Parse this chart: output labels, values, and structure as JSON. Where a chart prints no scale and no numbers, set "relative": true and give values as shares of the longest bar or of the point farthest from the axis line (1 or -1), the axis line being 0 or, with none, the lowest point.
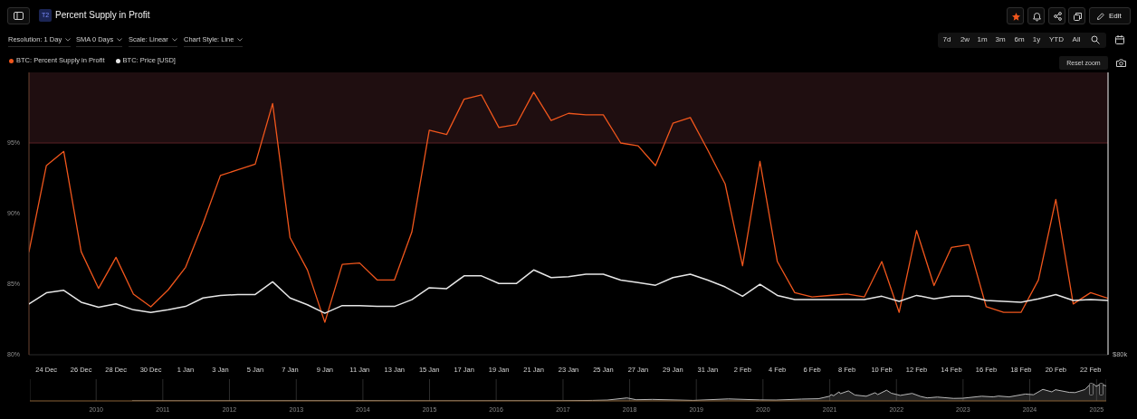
{
  "chart_data": [
    {
      "type": "line",
      "title": "Percent Supply in Profit",
      "annotations": [
        "T2",
        "Resolution: 1 Day",
        "SMA 0 Days",
        "Scale: Linear",
        "Chart Style: Line",
        "Edit",
        "7d",
        "2w",
        "1m",
        "3m",
        "6m",
        "1y",
        "YTD",
        "All",
        "Reset zoom"
      ],
      "x": [
        "2024-12-23",
        "2024-12-24",
        "2024-12-25",
        "2024-12-26",
        "2024-12-27",
        "2024-12-28",
        "2024-12-29",
        "2024-12-30",
        "2024-12-31",
        "2025-01-01",
        "2025-01-02",
        "2025-01-03",
        "2025-01-04",
        "2025-01-05",
        "2025-01-06",
        "2025-01-07",
        "2025-01-08",
        "2025-01-09",
        "2025-01-10",
        "2025-01-11",
        "2025-01-12",
        "2025-01-13",
        "2025-01-14",
        "2025-01-15",
        "2025-01-16",
        "2025-01-17",
        "2025-01-18",
        "2025-01-19",
        "2025-01-20",
        "2025-01-21",
        "2025-01-22",
        "2025-01-23",
        "2025-01-24",
        "2025-01-25",
        "2025-01-26",
        "2025-01-27",
        "2025-01-28",
        "2025-01-29",
        "2025-01-30",
        "2025-01-31",
        "2025-02-01",
        "2025-02-02",
        "2025-02-03",
        "2025-02-04",
        "2025-02-05",
        "2025-02-06",
        "2025-02-07",
        "2025-02-08",
        "2025-02-09",
        "2025-02-10",
        "2025-02-11",
        "2025-02-12",
        "2025-02-13",
        "2025-02-14",
        "2025-02-15",
        "2025-02-16",
        "2025-02-17",
        "2025-02-18",
        "2025-02-19",
        "2025-02-20",
        "2025-02-21",
        "2025-02-22",
        "2025-02-23"
      ],
      "xlim": [
        "2024-12-23",
        "2025-02-23"
      ],
      "xticks": [
        {
          "value": "2024-12-24",
          "label": "24 Dec"
        },
        {
          "value": "2024-12-26",
          "label": "26 Dec"
        },
        {
          "value": "2024-12-28",
          "label": "28 Dec"
        },
        {
          "value": "2024-12-30",
          "label": "30 Dec"
        },
        {
          "value": "2025-01-01",
          "label": "1 Jan"
        },
        {
          "value": "2025-01-03",
          "label": "3 Jan"
        },
        {
          "value": "2025-01-05",
          "label": "5 Jan"
        },
        {
          "value": "2025-01-07",
          "label": "7 Jan"
        },
        {
          "value": "2025-01-09",
          "label": "9 Jan"
        },
        {
          "value": "2025-01-11",
          "label": "11 Jan"
        },
        {
          "value": "2025-01-13",
          "label": "13 Jan"
        },
        {
          "value": "2025-01-15",
          "label": "15 Jan"
        },
        {
          "value": "2025-01-17",
          "label": "17 Jan"
        },
        {
          "value": "2025-01-19",
          "label": "19 Jan"
        },
        {
          "value": "2025-01-21",
          "label": "21 Jan"
        },
        {
          "value": "2025-01-23",
          "label": "23 Jan"
        },
        {
          "value": "2025-01-25",
          "label": "25 Jan"
        },
        {
          "value": "2025-01-27",
          "label": "27 Jan"
        },
        {
          "value": "2025-01-29",
          "label": "29 Jan"
        },
        {
          "value": "2025-01-31",
          "label": "31 Jan"
        },
        {
          "value": "2025-02-02",
          "label": "2 Feb"
        },
        {
          "value": "2025-02-04",
          "label": "4 Feb"
        },
        {
          "value": "2025-02-06",
          "label": "6 Feb"
        },
        {
          "value": "2025-02-08",
          "label": "8 Feb"
        },
        {
          "value": "2025-02-10",
          "label": "10 Feb"
        },
        {
          "value": "2025-02-12",
          "label": "12 Feb"
        },
        {
          "value": "2025-02-14",
          "label": "14 Feb"
        },
        {
          "value": "2025-02-16",
          "label": "16 Feb"
        },
        {
          "value": "2025-02-18",
          "label": "18 Feb"
        },
        {
          "value": "2025-02-20",
          "label": "20 Feb"
        },
        {
          "value": "2025-02-22",
          "label": "22 Feb"
        }
      ],
      "ylim": [
        80,
        100
      ],
      "yticks": [
        {
          "value": 80,
          "label": "80%"
        },
        {
          "value": 85,
          "label": "85%"
        },
        {
          "value": 90,
          "label": "90%"
        },
        {
          "value": 95,
          "label": "95%"
        }
      ],
      "series": [
        {
          "name": "BTC: Percent Supply in Profit",
          "color": "#f0561c",
          "values": [
            87.3,
            93.4,
            94.4,
            87.3,
            84.7,
            86.9,
            84.3,
            83.4,
            84.6,
            86.2,
            89.3,
            92.7,
            93.1,
            93.5,
            97.8,
            88.3,
            86.0,
            82.3,
            86.4,
            86.5,
            85.3,
            85.3,
            88.7,
            95.9,
            95.6,
            98.1,
            98.4,
            96.1,
            96.3,
            98.6,
            96.6,
            97.1,
            97.0,
            97.0,
            95.0,
            94.8,
            93.4,
            96.4,
            96.8,
            94.5,
            92.1,
            86.3,
            93.7,
            86.6,
            84.4,
            84.1,
            84.2,
            84.3,
            84.1,
            86.6,
            83.0,
            88.8,
            84.9,
            87.6,
            87.8,
            83.4,
            83.0,
            83.0,
            85.3,
            91.0,
            83.6,
            84.4,
            84.0
          ]
        }
      ],
      "bands": [
        {
          "axis": "y",
          "from": 95,
          "to": 100,
          "color": "#1f0e10"
        }
      ],
      "ref_lines": [
        {
          "axis": "y",
          "value": 95,
          "color": "#5a2024"
        }
      ],
      "legend": "top left"
    },
    {
      "type": "line",
      "relative": true,
      "tick_labels": false,
      "annotations": [
        "$80k"
      ],
      "x": [
        "2024-12-23",
        "2024-12-24",
        "2024-12-25",
        "2024-12-26",
        "2024-12-27",
        "2024-12-28",
        "2024-12-29",
        "2024-12-30",
        "2024-12-31",
        "2025-01-01",
        "2025-01-02",
        "2025-01-03",
        "2025-01-04",
        "2025-01-05",
        "2025-01-06",
        "2025-01-07",
        "2025-01-08",
        "2025-01-09",
        "2025-01-10",
        "2025-01-11",
        "2025-01-12",
        "2025-01-13",
        "2025-01-14",
        "2025-01-15",
        "2025-01-16",
        "2025-01-17",
        "2025-01-18",
        "2025-01-19",
        "2025-01-20",
        "2025-01-21",
        "2025-01-22",
        "2025-01-23",
        "2025-01-24",
        "2025-01-25",
        "2025-01-26",
        "2025-01-27",
        "2025-01-28",
        "2025-01-29",
        "2025-01-30",
        "2025-01-31",
        "2025-02-01",
        "2025-02-02",
        "2025-02-03",
        "2025-02-04",
        "2025-02-05",
        "2025-02-06",
        "2025-02-07",
        "2025-02-08",
        "2025-02-09",
        "2025-02-10",
        "2025-02-11",
        "2025-02-12",
        "2025-02-13",
        "2025-02-14",
        "2025-02-15",
        "2025-02-16",
        "2025-02-17",
        "2025-02-18",
        "2025-02-19",
        "2025-02-20",
        "2025-02-21",
        "2025-02-22",
        "2025-02-23"
      ],
      "xlim": [
        "2024-12-23",
        "2025-02-23"
      ],
      "series": [
        {
          "name": "BTC: Price [USD]",
          "color": "#e6e6e6",
          "values": [
            0.6,
            0.73,
            0.76,
            0.62,
            0.56,
            0.6,
            0.53,
            0.5,
            0.53,
            0.57,
            0.67,
            0.7,
            0.71,
            0.71,
            0.86,
            0.67,
            0.59,
            0.49,
            0.58,
            0.58,
            0.57,
            0.57,
            0.65,
            0.79,
            0.78,
            0.93,
            0.93,
            0.84,
            0.84,
            1,
            0.91,
            0.92,
            0.95,
            0.95,
            0.88,
            0.85,
            0.82,
            0.91,
            0.95,
            0.88,
            0.8,
            0.69,
            0.83,
            0.7,
            0.65,
            0.65,
            0.65,
            0.65,
            0.65,
            0.69,
            0.63,
            0.7,
            0.66,
            0.69,
            0.69,
            0.64,
            0.63,
            0.62,
            0.66,
            0.71,
            0.64,
            0.65,
            0.64
          ]
        }
      ],
      "legend": "top left"
    },
    {
      "type": "area",
      "relative": true,
      "color": "#b8b8b8",
      "x": [
        "2010-07-17",
        "2013-11-30",
        "2015-01-14",
        "2016-12-31",
        "2017-06-11",
        "2017-09-01",
        "2017-12-17",
        "2018-02-06",
        "2018-05-05",
        "2018-12-15",
        "2019-06-26",
        "2019-12-17",
        "2020-03-12",
        "2020-07-31",
        "2020-10-31",
        "2020-12-31",
        "2021-01-08",
        "2021-01-22",
        "2021-02-21",
        "2021-02-28",
        "2021-04-13",
        "2021-05-19",
        "2021-07-20",
        "2021-09-06",
        "2021-09-21",
        "2021-11-08",
        "2021-12-04",
        "2022-01-22",
        "2022-03-28",
        "2022-05-12",
        "2022-06-18",
        "2022-08-13",
        "2022-11-09",
        "2022-12-31",
        "2023-04-13",
        "2023-06-15",
        "2023-07-13",
        "2023-09-11",
        "2023-12-08",
        "2024-01-22",
        "2024-03-13",
        "2024-05-01",
        "2024-05-21",
        "2024-08-05",
        "2024-09-06",
        "2024-10-29",
        "2024-11-21",
        "2024-12-17",
        "2024-12-30",
        "2025-01-21",
        "2025-02-23"
      ],
      "values": [
        0,
        0.01,
        0,
        0.01,
        0.03,
        0.05,
        0.18,
        0.07,
        0.09,
        0.03,
        0.12,
        0.06,
        0.05,
        0.11,
        0.13,
        0.28,
        0.38,
        0.31,
        0.54,
        0.43,
        0.6,
        0.35,
        0.28,
        0.49,
        0.38,
        0.64,
        0.46,
        0.33,
        0.45,
        0.27,
        0.18,
        0.23,
        0.15,
        0.16,
        0.28,
        0.24,
        0.29,
        0.24,
        0.41,
        0.37,
        0.69,
        0.54,
        0.67,
        0.51,
        0.5,
        0.68,
        0.93,
        1,
        0.87,
        1,
        0.9
      ],
      "xlim": [
        "2009-01-03",
        "2025-02-23"
      ],
      "xticks": [
        {
          "value": "2010",
          "label": "2010"
        },
        {
          "value": "2011",
          "label": "2011"
        },
        {
          "value": "2012",
          "label": "2012"
        },
        {
          "value": "2013",
          "label": "2013"
        },
        {
          "value": "2014",
          "label": "2014"
        },
        {
          "value": "2015",
          "label": "2015"
        },
        {
          "value": "2016",
          "label": "2016"
        },
        {
          "value": "2017",
          "label": "2017"
        },
        {
          "value": "2018",
          "label": "2018"
        },
        {
          "value": "2019",
          "label": "2019"
        },
        {
          "value": "2020",
          "label": "2020"
        },
        {
          "value": "2021",
          "label": "2021"
        },
        {
          "value": "2022",
          "label": "2022"
        },
        {
          "value": "2023",
          "label": "2023"
        },
        {
          "value": "2024",
          "label": "2024"
        },
        {
          "value": "2025",
          "label": "2025"
        }
      ],
      "grid": "x"
    }
  ]
}
